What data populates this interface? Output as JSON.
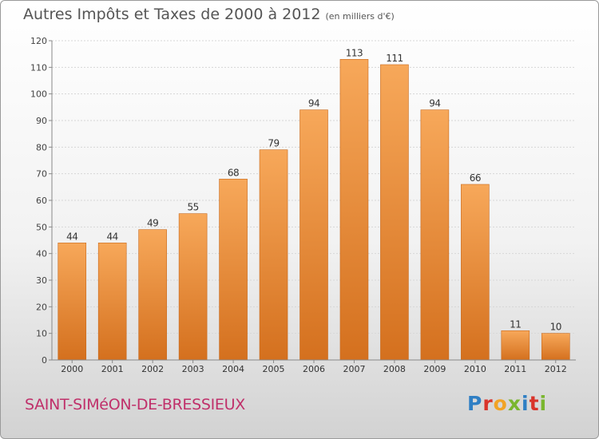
{
  "title": "Autres Impôts et Taxes de 2000 à 2012",
  "title_unit": "(en milliers d'€)",
  "commune": "SAINT-SIMéON-DE-BRESSIEUX",
  "logo_letters": [
    "P",
    "r",
    "o",
    "x",
    "i",
    "t",
    "i"
  ],
  "colors": {
    "bar_top": "#f7a85a",
    "bar_bottom": "#d4701e",
    "bar_stroke": "#c8691c",
    "commune": "#c0306a"
  },
  "chart_data": {
    "type": "bar",
    "categories": [
      "2000",
      "2001",
      "2002",
      "2003",
      "2004",
      "2005",
      "2006",
      "2007",
      "2008",
      "2009",
      "2010",
      "2011",
      "2012"
    ],
    "values": [
      44,
      44,
      49,
      55,
      68,
      79,
      94,
      113,
      111,
      94,
      66,
      11,
      10
    ],
    "ylim": [
      0,
      120
    ],
    "yticks": [
      0,
      10,
      20,
      30,
      40,
      50,
      60,
      70,
      80,
      90,
      100,
      110,
      120
    ],
    "grid": true
  }
}
